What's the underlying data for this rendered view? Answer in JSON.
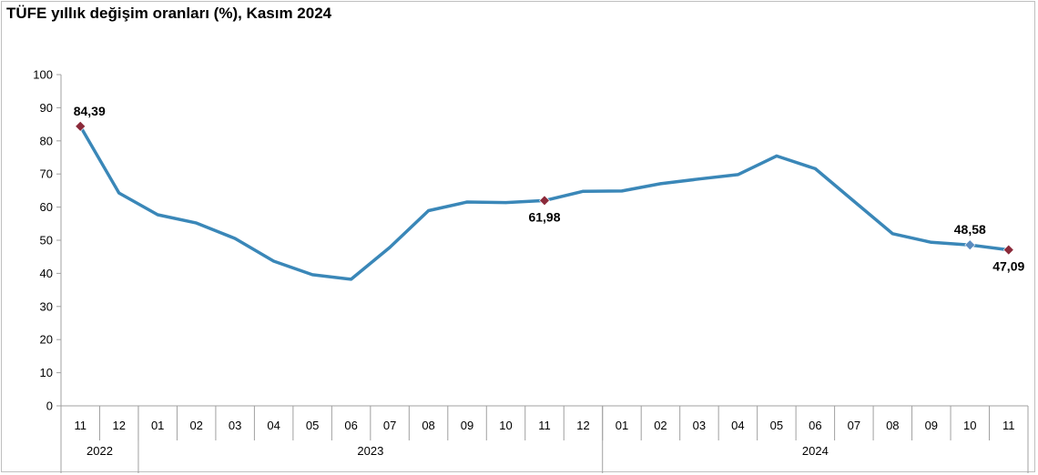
{
  "chart_data": {
    "type": "line",
    "title": "TÜFE yıllık değişim oranları (%), Kasım 2024",
    "xlabel": "",
    "ylabel": "",
    "ylim": [
      0,
      100
    ],
    "yticks": [
      0,
      10,
      20,
      30,
      40,
      50,
      60,
      70,
      80,
      90,
      100
    ],
    "grid": false,
    "legend": "none",
    "colors": {
      "line": "#3a87b8",
      "marker_red": "#8b2a3a",
      "marker_blue": "#5b8cc0",
      "axis": "#a0a0a0"
    },
    "categories": [
      "11",
      "12",
      "01",
      "02",
      "03",
      "04",
      "05",
      "06",
      "07",
      "08",
      "09",
      "10",
      "11",
      "12",
      "01",
      "02",
      "03",
      "04",
      "05",
      "06",
      "07",
      "08",
      "09",
      "10",
      "11"
    ],
    "year_groups": [
      {
        "label": "2022",
        "start": 0,
        "end": 1
      },
      {
        "label": "2023",
        "start": 2,
        "end": 13
      },
      {
        "label": "2024",
        "start": 14,
        "end": 24
      }
    ],
    "series": [
      {
        "values": [
          84.39,
          64.27,
          57.68,
          55.18,
          50.51,
          43.68,
          39.59,
          38.21,
          47.83,
          58.94,
          61.53,
          61.36,
          61.98,
          64.77,
          64.86,
          67.07,
          68.5,
          69.8,
          75.45,
          71.6,
          61.78,
          51.97,
          49.38,
          48.58,
          47.09
        ]
      }
    ],
    "annotations": [
      {
        "index": 0,
        "text": "84,39",
        "marker": "marker_red",
        "pos": "above"
      },
      {
        "index": 12,
        "text": "61,98",
        "marker": "marker_red",
        "pos": "below"
      },
      {
        "index": 23,
        "text": "48,58",
        "marker": "marker_blue",
        "pos": "above"
      },
      {
        "index": 24,
        "text": "47,09",
        "marker": "marker_red",
        "pos": "below"
      }
    ]
  }
}
